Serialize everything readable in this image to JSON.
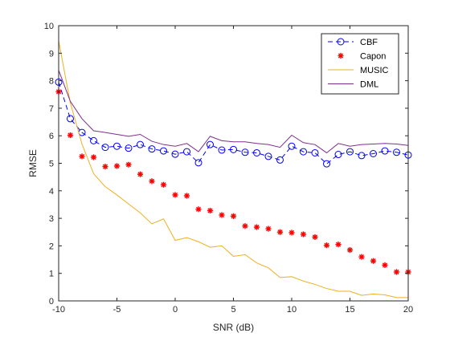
{
  "chart_data": {
    "type": "line",
    "xlabel": "SNR (dB)",
    "ylabel": "RMSE",
    "xlim": [
      -10,
      20
    ],
    "ylim": [
      0,
      10
    ],
    "xticks": [
      "-10",
      "-5",
      "0",
      "5",
      "10",
      "15",
      "20"
    ],
    "yticks": [
      "0",
      "1",
      "2",
      "3",
      "4",
      "5",
      "6",
      "7",
      "8",
      "9",
      "10"
    ],
    "grid": false,
    "legend_position": "top-right",
    "x": [
      -10,
      -9,
      -8,
      -7,
      -6,
      -5,
      -4,
      -3,
      -2,
      -1,
      0,
      1,
      2,
      3,
      4,
      5,
      6,
      7,
      8,
      9,
      10,
      11,
      12,
      13,
      14,
      15,
      16,
      17,
      18,
      19,
      20
    ],
    "series": [
      {
        "name": "CBF",
        "color": "#0000ff",
        "line": "dashed",
        "marker": "circle",
        "values": [
          7.95,
          6.62,
          6.12,
          5.82,
          5.58,
          5.62,
          5.55,
          5.68,
          5.52,
          5.45,
          5.33,
          5.42,
          5.02,
          5.68,
          5.48,
          5.5,
          5.4,
          5.38,
          5.25,
          5.12,
          5.62,
          5.42,
          5.38,
          4.98,
          5.32,
          5.42,
          5.28,
          5.35,
          5.45,
          5.4,
          5.3
        ]
      },
      {
        "name": "Capon",
        "color": "#ff0000",
        "line": "none",
        "marker": "star",
        "values": [
          7.6,
          6.02,
          5.25,
          5.22,
          4.88,
          4.9,
          4.95,
          4.6,
          4.35,
          4.22,
          3.85,
          3.82,
          3.33,
          3.28,
          3.12,
          3.08,
          2.72,
          2.68,
          2.62,
          2.5,
          2.48,
          2.42,
          2.32,
          2.02,
          2.05,
          1.85,
          1.6,
          1.45,
          1.3,
          1.05,
          1.05
        ]
      },
      {
        "name": "MUSIC",
        "color": "#edb120",
        "line": "solid",
        "marker": "none",
        "values": [
          9.45,
          7.2,
          5.7,
          4.62,
          4.15,
          3.85,
          3.52,
          3.2,
          2.8,
          2.98,
          2.2,
          2.3,
          2.15,
          1.95,
          2.0,
          1.62,
          1.68,
          1.38,
          1.2,
          0.85,
          0.88,
          0.72,
          0.6,
          0.45,
          0.35,
          0.35,
          0.2,
          0.25,
          0.22,
          0.12,
          0.12
        ]
      },
      {
        "name": "DML",
        "color": "#7e2f8e",
        "line": "solid",
        "marker": "none",
        "values": [
          8.38,
          7.25,
          6.62,
          6.18,
          6.12,
          6.05,
          5.98,
          6.05,
          5.8,
          5.68,
          5.62,
          5.72,
          5.42,
          5.98,
          5.82,
          5.78,
          5.78,
          5.72,
          5.68,
          5.58,
          6.02,
          5.75,
          5.68,
          5.38,
          5.72,
          5.62,
          5.68,
          5.7,
          5.72,
          5.7,
          5.65
        ]
      }
    ]
  }
}
